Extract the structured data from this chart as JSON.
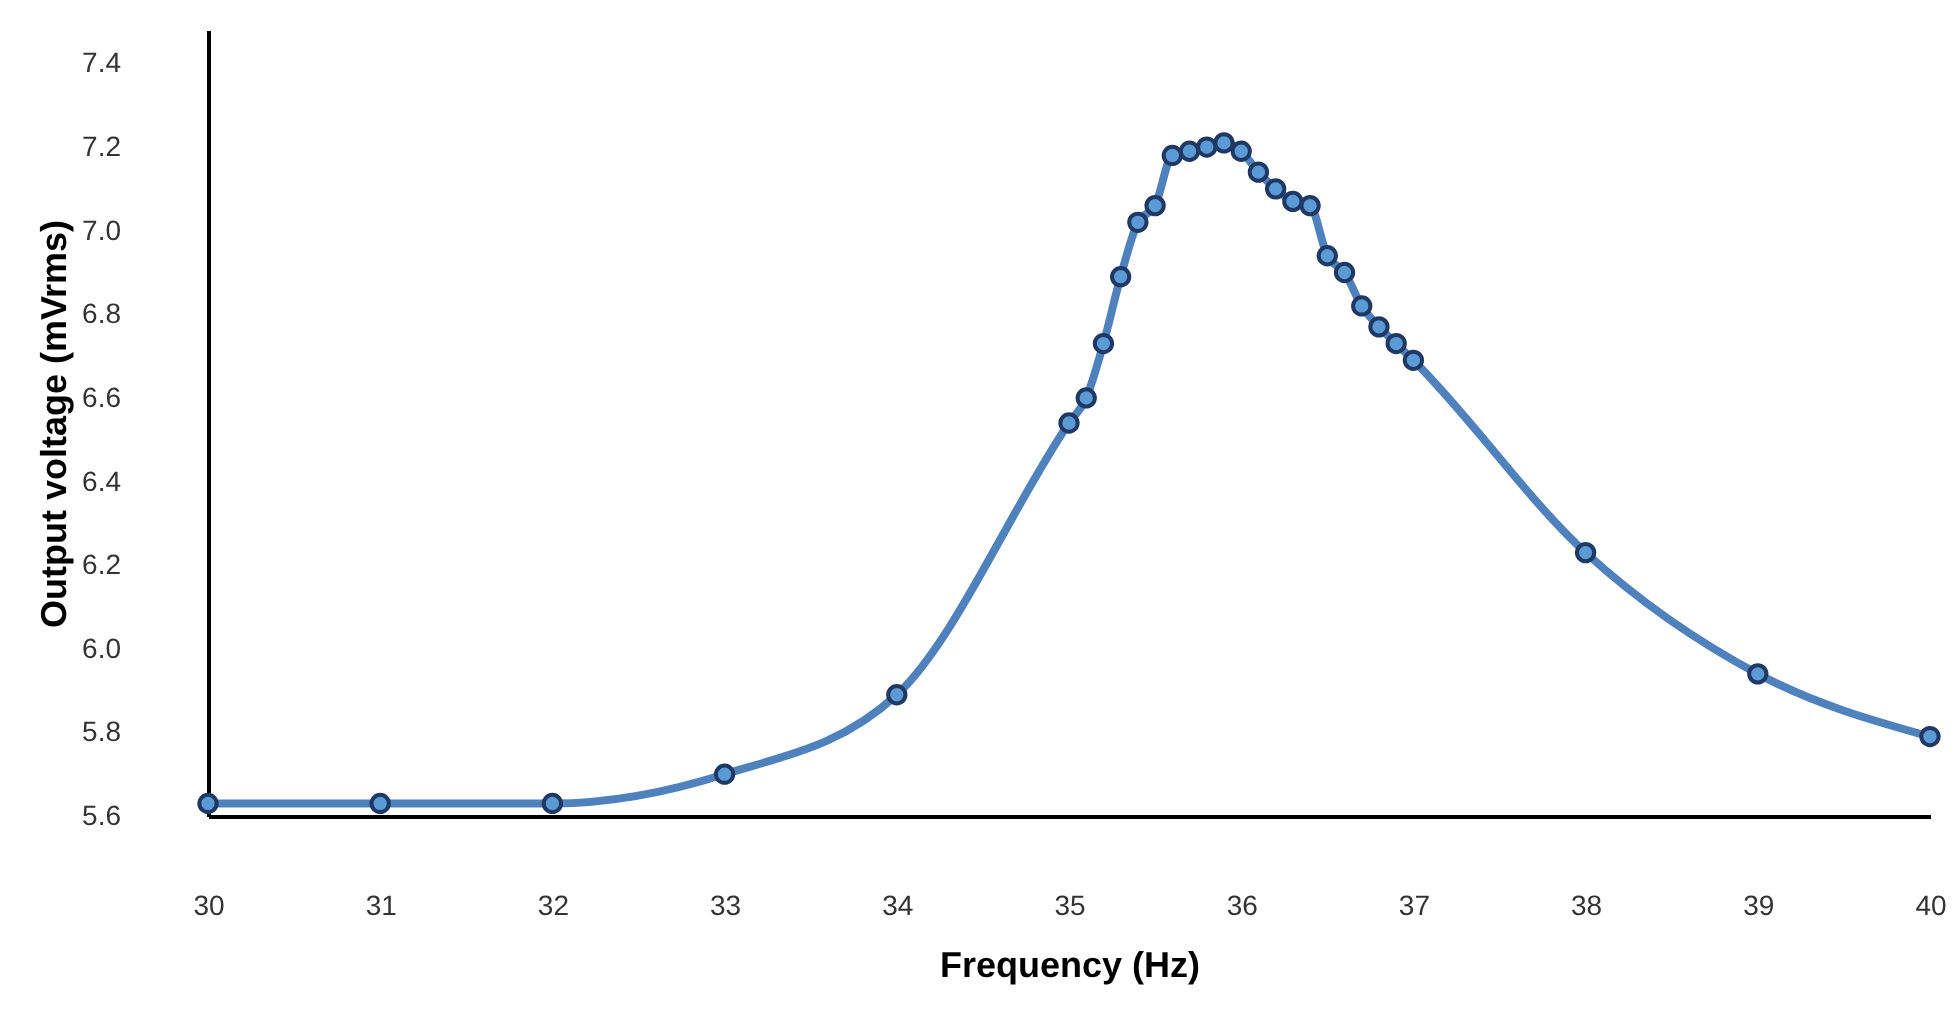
{
  "chart_data": {
    "type": "line",
    "xlabel": "Frequency (Hz)",
    "ylabel": "Output voltage (mVrms)",
    "x": [
      30,
      31,
      32,
      33,
      34,
      35,
      35.1,
      35.2,
      35.3,
      35.4,
      35.5,
      35.6,
      35.7,
      35.8,
      35.9,
      36,
      36.1,
      36.2,
      36.3,
      36.4,
      36.5,
      36.6,
      36.7,
      36.8,
      36.9,
      37,
      38,
      39,
      40
    ],
    "series": [
      {
        "color": "#4f81bd",
        "values": [
          5.63,
          5.63,
          5.63,
          5.7,
          5.89,
          6.54,
          6.6,
          6.73,
          6.89,
          7.02,
          7.06,
          7.18,
          7.19,
          7.2,
          7.21,
          7.19,
          7.14,
          7.1,
          7.07,
          7.06,
          6.94,
          6.9,
          6.82,
          6.77,
          6.73,
          6.69,
          6.23,
          5.94,
          5.79
        ]
      }
    ],
    "xlim": [
      30,
      40
    ],
    "xticks": [
      30,
      31,
      32,
      33,
      34,
      35,
      36,
      37,
      38,
      39,
      40
    ],
    "ylim": [
      5.6,
      7.48
    ],
    "yticks": [
      5.6,
      5.8,
      {
        "value": 6,
        "label": "6.0"
      },
      6.2,
      6.4,
      6.6,
      6.8,
      {
        "value": 7,
        "label": "7.0"
      },
      7.2,
      7.4
    ],
    "marker": "circle",
    "grid": false
  }
}
